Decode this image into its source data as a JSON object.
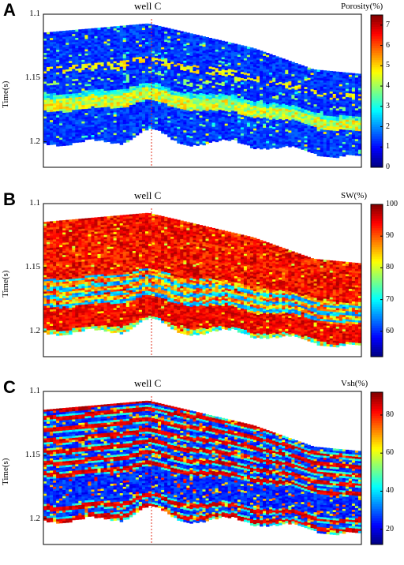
{
  "chart_data": [
    {
      "type": "heatmap",
      "panel_label": "A",
      "well_label": "well C",
      "ylabel": "Time(s)",
      "ylim": [
        1.1,
        1.22
      ],
      "y_ticks": [
        "1.1",
        "1.15",
        "1.2"
      ],
      "colorbar": {
        "title": "Porosity(%)",
        "range": [
          0,
          7.5
        ],
        "ticks": [
          "0",
          "1",
          "2",
          "3",
          "4",
          "5",
          "6",
          "7"
        ],
        "colormap": "jet"
      },
      "section_style": "porosity"
    },
    {
      "type": "heatmap",
      "panel_label": "B",
      "well_label": "well C",
      "ylabel": "Time(s)",
      "ylim": [
        1.1,
        1.22
      ],
      "y_ticks": [
        "1.1",
        "1.15",
        "1.2"
      ],
      "colorbar": {
        "title": "SW(%)",
        "range": [
          52,
          100
        ],
        "ticks": [
          "60",
          "70",
          "80",
          "90",
          "100"
        ],
        "colormap": "jet"
      },
      "section_style": "sw"
    },
    {
      "type": "heatmap",
      "panel_label": "C",
      "well_label": "well C",
      "ylabel": "Time(s)",
      "ylim": [
        1.1,
        1.22
      ],
      "y_ticks": [
        "1.1",
        "1.15",
        "1.2"
      ],
      "colorbar": {
        "title": "Vsh(%)",
        "range": [
          12,
          92
        ],
        "ticks": [
          "20",
          "40",
          "60",
          "80"
        ],
        "colormap": "jet"
      },
      "section_style": "vsh"
    }
  ]
}
